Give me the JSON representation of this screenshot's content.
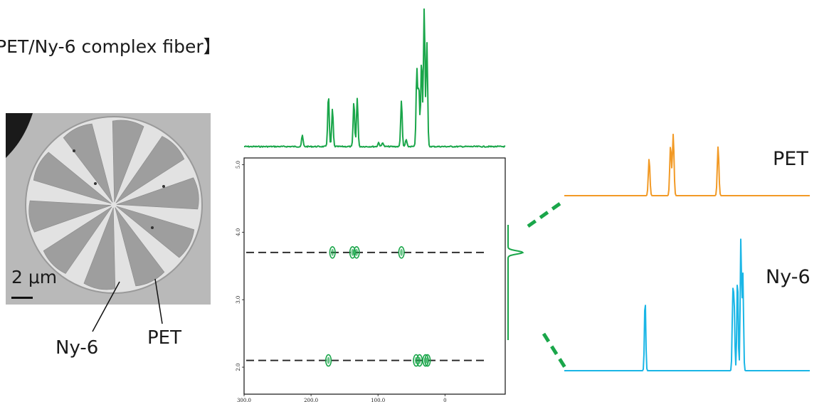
{
  "header": {
    "title": "PET/Ny-6 complex fiber】"
  },
  "micrograph": {
    "scale_bar_label": "2 μm",
    "labels": {
      "nylon": "Ny-6",
      "pet": "PET"
    },
    "sector_count": 10
  },
  "spectra_labels": {
    "pet": "PET",
    "nylon": "Ny-6"
  },
  "colors": {
    "hsqc": "#1aa64a",
    "pet": "#f29a26",
    "nylon": "#1ab6e6",
    "dashed_line": "#222222"
  },
  "chart_data": [
    {
      "type": "scatter",
      "subtype": "2D correlation map (contours) with projections",
      "x_axis": {
        "ticks": [
          "300.0",
          "200.0",
          "100.0",
          "0"
        ],
        "lim": [
          300,
          -90
        ],
        "reversed": true
      },
      "y_axis": {
        "ticks": [
          "2.0",
          "3.0",
          "4.0",
          "5.0"
        ],
        "lim": [
          1.6,
          5.1
        ]
      },
      "grid": false,
      "cross_sections": [
        {
          "name": "PET",
          "y": 3.7
        },
        {
          "name": "Ny-6",
          "y": 2.1
        }
      ],
      "peaks": [
        {
          "x": 168,
          "y": 3.7
        },
        {
          "x": 138,
          "y": 3.7
        },
        {
          "x": 132,
          "y": 3.7
        },
        {
          "x": 65,
          "y": 3.7
        },
        {
          "x": 174,
          "y": 2.1
        },
        {
          "x": 43,
          "y": 2.1
        },
        {
          "x": 38,
          "y": 2.1
        },
        {
          "x": 29,
          "y": 2.1
        },
        {
          "x": 26,
          "y": 2.1
        }
      ],
      "top_projection": {
        "peaks": [
          {
            "x": 213,
            "h": 0.08
          },
          {
            "x": 174,
            "h": 0.37
          },
          {
            "x": 168,
            "h": 0.27
          },
          {
            "x": 136,
            "h": 0.32
          },
          {
            "x": 131,
            "h": 0.35
          },
          {
            "x": 99,
            "h": 0.03
          },
          {
            "x": 93,
            "h": 0.03
          },
          {
            "x": 65,
            "h": 0.33
          },
          {
            "x": 58,
            "h": 0.05
          },
          {
            "x": 42,
            "h": 0.55
          },
          {
            "x": 39,
            "h": 0.42
          },
          {
            "x": 35,
            "h": 0.62
          },
          {
            "x": 31,
            "h": 1.0
          },
          {
            "x": 27,
            "h": 0.75
          }
        ]
      },
      "side_projection": {
        "peaks": [
          {
            "y": 3.7,
            "h": 0.45
          },
          {
            "y": 2.1,
            "h": 1.0
          }
        ]
      }
    },
    {
      "type": "line",
      "name": "PET",
      "peaks": [
        {
          "x": 168,
          "h": 0.6
        },
        {
          "x": 136,
          "h": 0.82
        },
        {
          "x": 132,
          "h": 1.0
        },
        {
          "x": 65,
          "h": 0.8
        }
      ]
    },
    {
      "type": "line",
      "name": "Ny-6",
      "peaks": [
        {
          "x": 174,
          "h": 0.55
        },
        {
          "x": 43,
          "h": 0.55
        },
        {
          "x": 41,
          "h": 0.47
        },
        {
          "x": 36,
          "h": 0.72
        },
        {
          "x": 31,
          "h": 1.0
        },
        {
          "x": 28,
          "h": 0.73
        }
      ]
    }
  ]
}
